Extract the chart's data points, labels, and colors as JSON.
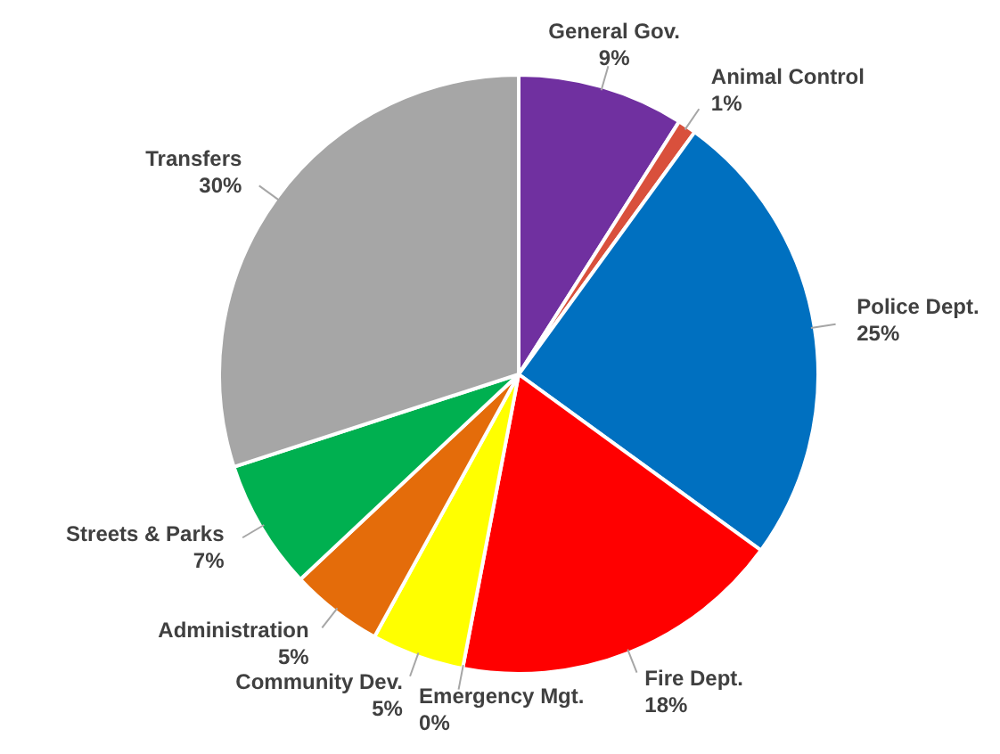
{
  "chart_data": {
    "type": "pie",
    "categories": [
      "General Gov.",
      "Animal Control",
      "Police Dept.",
      "Fire Dept.",
      "Emergency Mgt.",
      "Community Dev.",
      "Administration",
      "Streets & Parks",
      "Transfers"
    ],
    "values": [
      9,
      1,
      25,
      18,
      0,
      5,
      5,
      7,
      30
    ],
    "colors": [
      "#7030a0",
      "#d9503c",
      "#0070c0",
      "#ff0000",
      "#7f7f7f",
      "#ffff00",
      "#e46c0a",
      "#00b050",
      "#a6a6a6"
    ],
    "value_labels": [
      "9%",
      "1%",
      "25%",
      "18%",
      "0%",
      "5%",
      "5%",
      "7%",
      "30%"
    ]
  }
}
